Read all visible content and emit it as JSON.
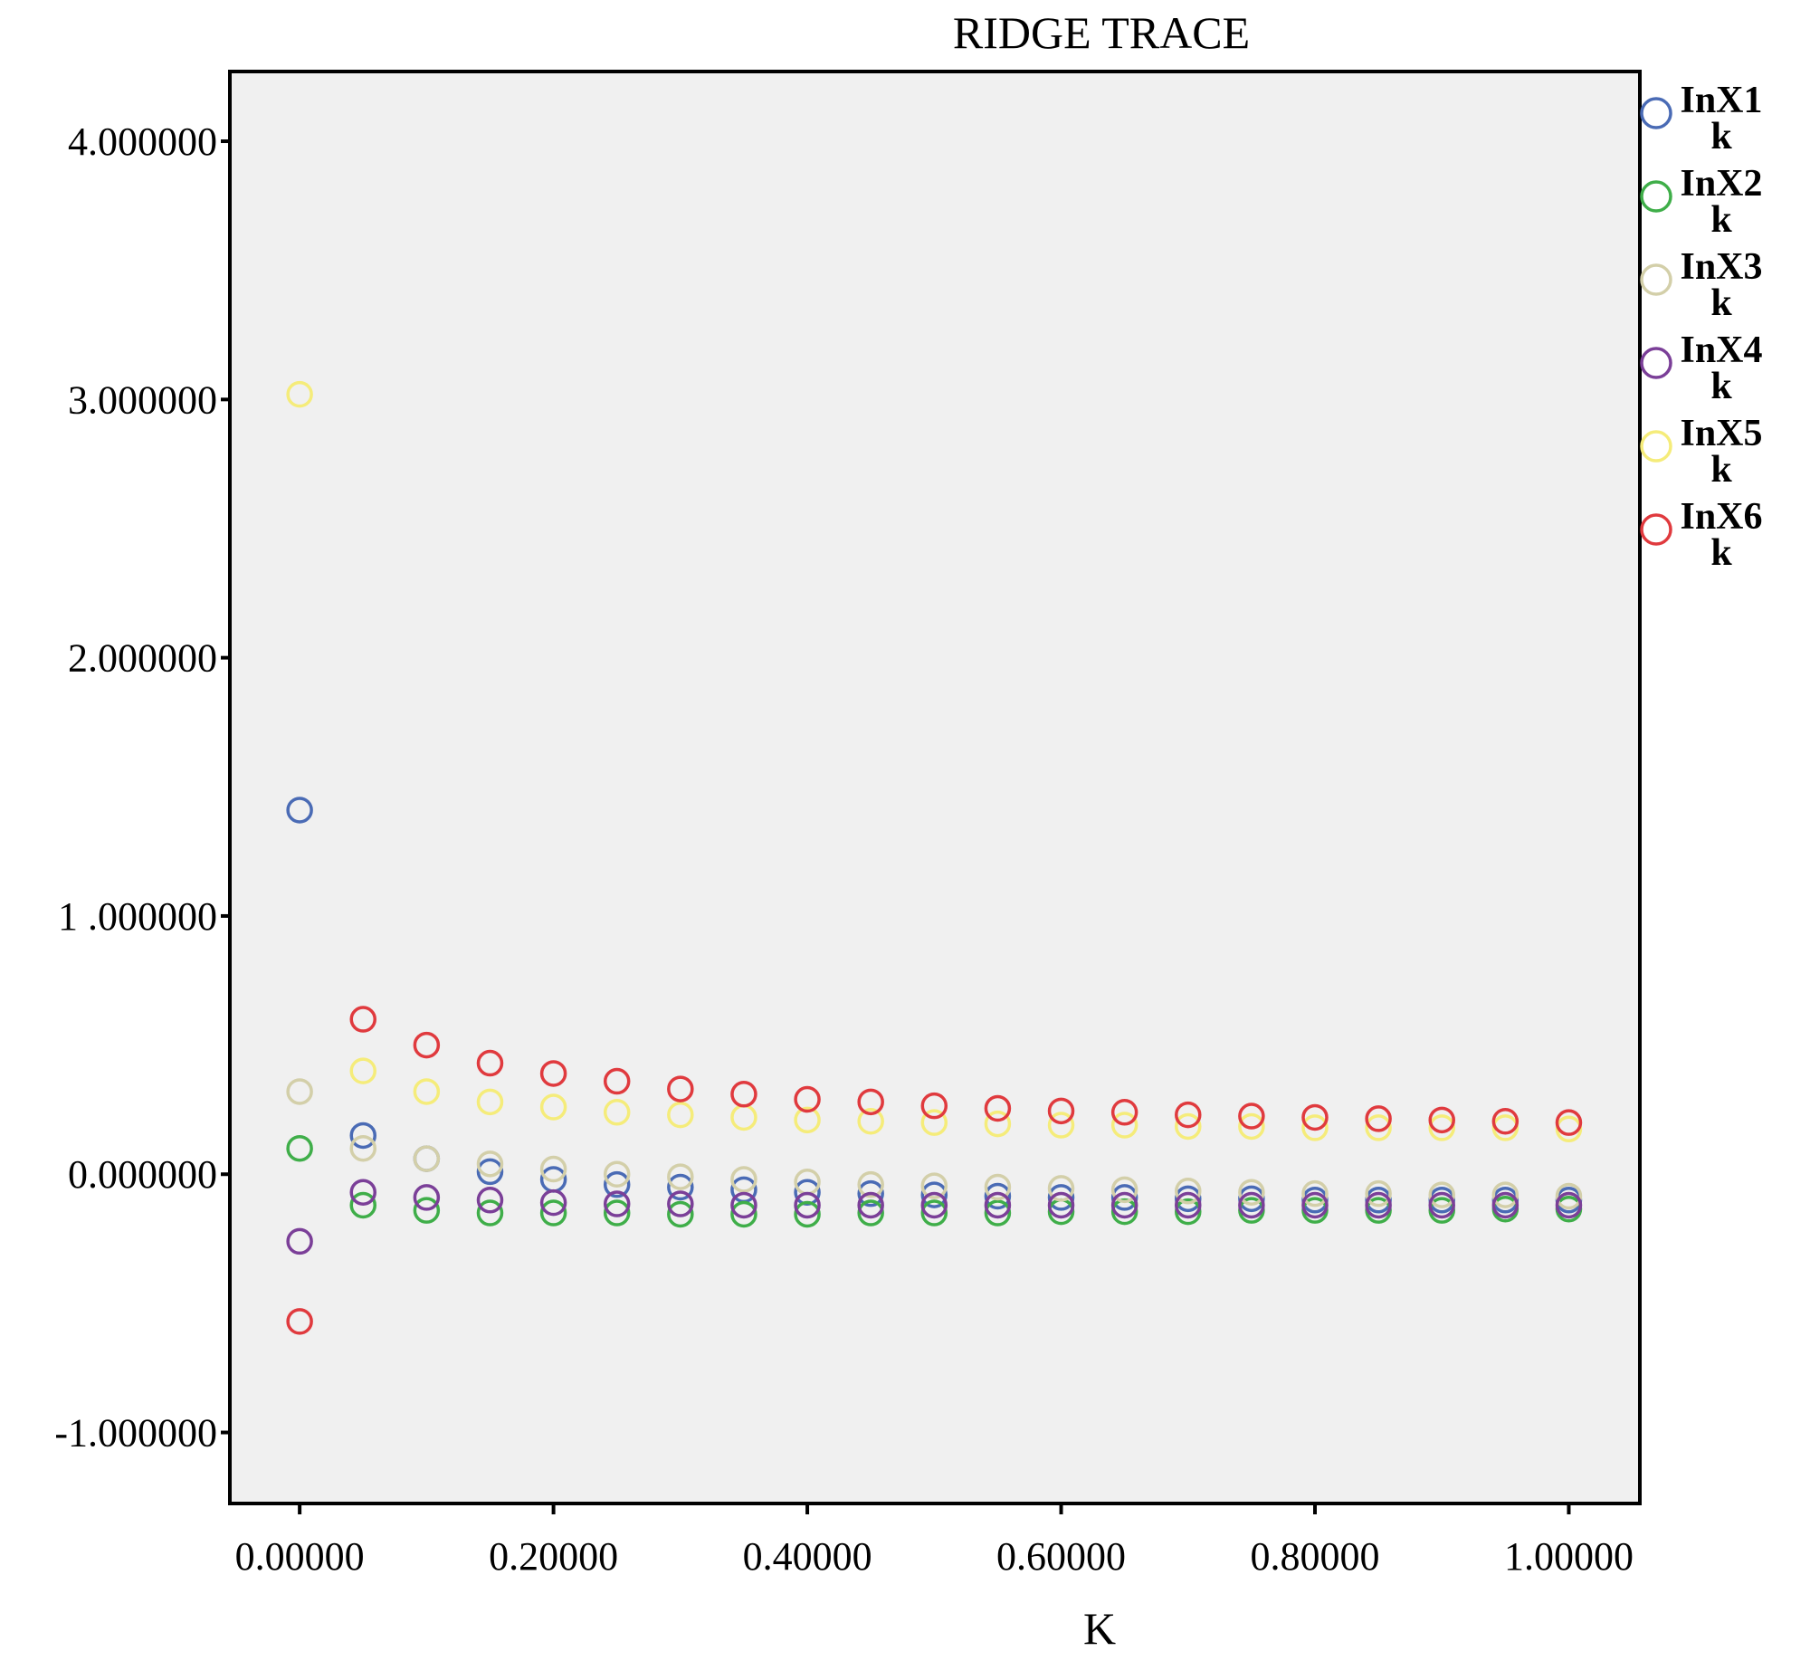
{
  "chart_data": {
    "type": "scatter",
    "title": "RIDGE TRACE",
    "xlabel": "K",
    "ylabel": "",
    "xlim": [
      -0.055,
      1.056
    ],
    "ylim": [
      -1.275,
      4.27
    ],
    "x_ticks": [
      {
        "value": 0.0,
        "label": "0.00000"
      },
      {
        "value": 0.2,
        "label": "0.20000"
      },
      {
        "value": 0.4,
        "label": "0.40000"
      },
      {
        "value": 0.6,
        "label": "0.60000"
      },
      {
        "value": 0.8,
        "label": "0.80000"
      },
      {
        "value": 1.0,
        "label": "1.00000"
      }
    ],
    "y_ticks": [
      {
        "value": -1.0,
        "label": "-1.000000"
      },
      {
        "value": 0.0,
        "label": "0.000000"
      },
      {
        "value": 1.0,
        "label": "1 .000000"
      },
      {
        "value": 2.0,
        "label": "2.000000"
      },
      {
        "value": 3.0,
        "label": "3.000000"
      },
      {
        "value": 4.0,
        "label": "4.000000"
      }
    ],
    "grid": false,
    "legend_position": "right",
    "plot_background": "#f0f0f0",
    "x": [
      0.0,
      0.05,
      0.1,
      0.15,
      0.2,
      0.25,
      0.3,
      0.35,
      0.4,
      0.45,
      0.5,
      0.55,
      0.6,
      0.65,
      0.7,
      0.75,
      0.8,
      0.85,
      0.9,
      0.95,
      1.0
    ],
    "series": [
      {
        "name": "InX1",
        "sub": "k",
        "color": "#4a6bb5",
        "values": [
          1.41,
          0.15,
          0.06,
          0.01,
          -0.02,
          -0.04,
          -0.05,
          -0.06,
          -0.07,
          -0.075,
          -0.08,
          -0.085,
          -0.09,
          -0.09,
          -0.095,
          -0.095,
          -0.1,
          -0.1,
          -0.1,
          -0.1,
          -0.1
        ]
      },
      {
        "name": "InX2",
        "sub": "k",
        "color": "#3fae49",
        "values": [
          0.1,
          -0.12,
          -0.14,
          -0.15,
          -0.15,
          -0.15,
          -0.155,
          -0.155,
          -0.155,
          -0.15,
          -0.15,
          -0.15,
          -0.145,
          -0.145,
          -0.145,
          -0.14,
          -0.14,
          -0.14,
          -0.14,
          -0.135,
          -0.135
        ]
      },
      {
        "name": "InX3",
        "sub": "k",
        "color": "#d3cfa9",
        "values": [
          0.32,
          0.1,
          0.06,
          0.04,
          0.02,
          0.0,
          -0.01,
          -0.02,
          -0.03,
          -0.04,
          -0.045,
          -0.05,
          -0.055,
          -0.06,
          -0.065,
          -0.07,
          -0.075,
          -0.075,
          -0.08,
          -0.08,
          -0.085
        ]
      },
      {
        "name": "InX4",
        "sub": "k",
        "color": "#7b3f98",
        "values": [
          -0.26,
          -0.07,
          -0.09,
          -0.1,
          -0.11,
          -0.115,
          -0.115,
          -0.12,
          -0.12,
          -0.12,
          -0.12,
          -0.12,
          -0.12,
          -0.12,
          -0.12,
          -0.12,
          -0.12,
          -0.12,
          -0.12,
          -0.12,
          -0.12
        ]
      },
      {
        "name": "InX5",
        "sub": "k",
        "color": "#f5ec7a",
        "values": [
          3.02,
          0.4,
          0.32,
          0.28,
          0.26,
          0.24,
          0.23,
          0.22,
          0.21,
          0.205,
          0.2,
          0.195,
          0.19,
          0.19,
          0.185,
          0.185,
          0.18,
          0.18,
          0.18,
          0.18,
          0.175
        ]
      },
      {
        "name": "InX6",
        "sub": "k",
        "color": "#e03a3e",
        "values": [
          -0.57,
          0.6,
          0.5,
          0.43,
          0.39,
          0.36,
          0.33,
          0.31,
          0.29,
          0.28,
          0.265,
          0.255,
          0.245,
          0.24,
          0.23,
          0.225,
          0.22,
          0.215,
          0.21,
          0.205,
          0.2
        ]
      }
    ]
  }
}
